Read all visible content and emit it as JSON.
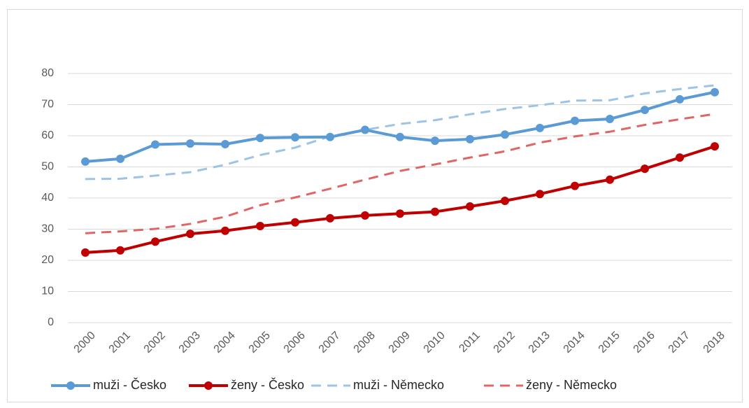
{
  "chart_data": {
    "type": "line",
    "categories": [
      "2000",
      "2001",
      "2002",
      "2003",
      "2004",
      "2005",
      "2006",
      "2007",
      "2008",
      "2009",
      "2010",
      "2011",
      "2012",
      "2013",
      "2014",
      "2015",
      "2016",
      "2017",
      "2018"
    ],
    "series": [
      {
        "name": "muži - Česko",
        "color": "#5b9bd5",
        "style": "solid",
        "markers": true,
        "values": [
          51.7,
          52.6,
          57.2,
          57.5,
          57.3,
          59.3,
          59.5,
          59.6,
          61.9,
          59.6,
          58.4,
          58.9,
          60.4,
          62.5,
          64.8,
          65.4,
          68.3,
          71.7,
          74.0
        ]
      },
      {
        "name": "ženy - Česko",
        "color": "#c00000",
        "style": "solid",
        "markers": true,
        "values": [
          22.5,
          23.2,
          26.0,
          28.5,
          29.5,
          31.0,
          32.2,
          33.5,
          34.4,
          35.0,
          35.6,
          37.3,
          39.1,
          41.3,
          43.9,
          45.9,
          49.4,
          53.0,
          56.6
        ]
      },
      {
        "name": "muži - Německo",
        "color": "#9dc3e6",
        "style": "dashed",
        "markers": false,
        "values": [
          46.1,
          46.2,
          47.2,
          48.3,
          50.7,
          53.8,
          56.2,
          59.8,
          61.9,
          63.8,
          65.0,
          66.9,
          68.6,
          69.8,
          71.3,
          71.4,
          73.6,
          75.0,
          76.2
        ]
      },
      {
        "name": "ženy - Německo",
        "color": "#e06666",
        "style": "dashed",
        "markers": false,
        "values": [
          28.7,
          29.3,
          30.1,
          31.7,
          34.0,
          37.7,
          40.2,
          43.0,
          45.9,
          48.7,
          50.8,
          53.0,
          55.0,
          57.8,
          59.8,
          61.3,
          63.5,
          65.3,
          67.0
        ]
      }
    ],
    "ylim": [
      0,
      80
    ],
    "yticks": [
      0,
      10,
      20,
      30,
      40,
      50,
      60,
      70,
      80
    ],
    "grid": true,
    "legend": "bottom"
  }
}
